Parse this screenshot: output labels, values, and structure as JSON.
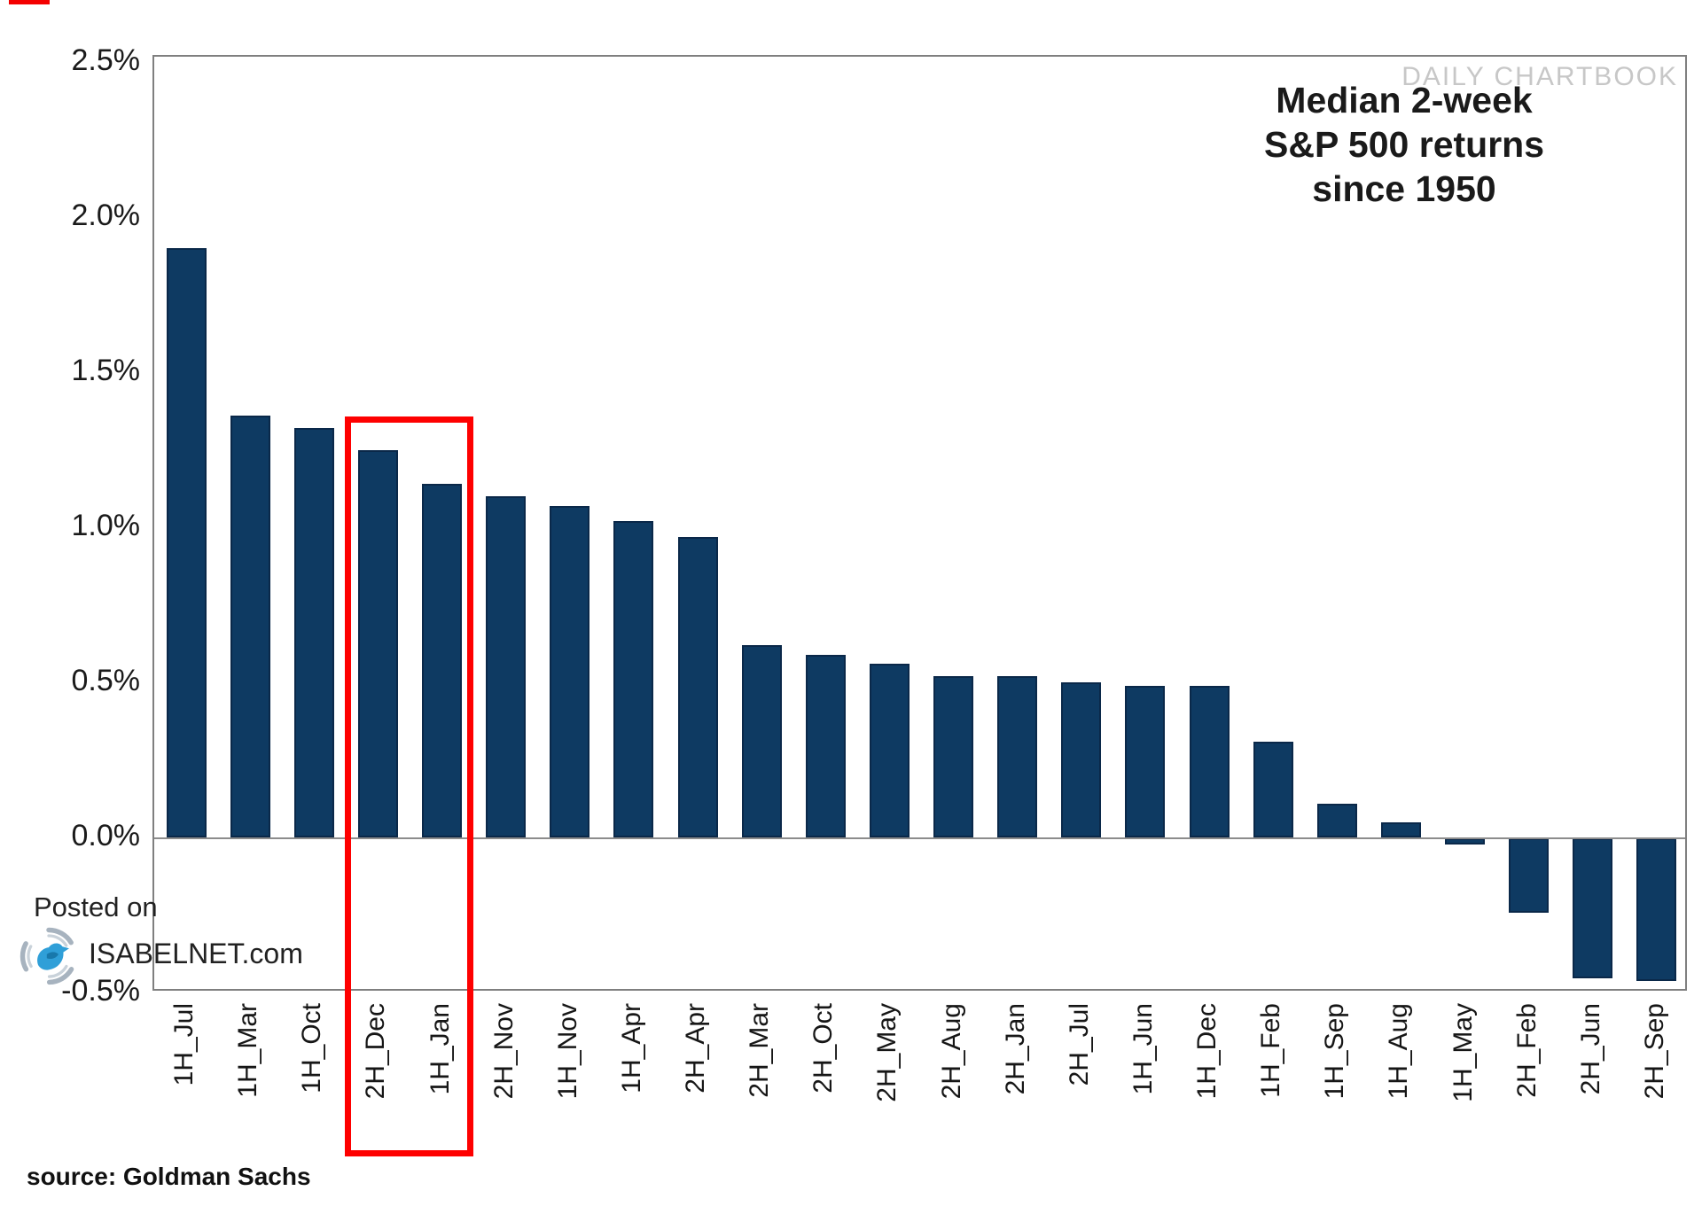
{
  "page": {
    "watermark": "DAILY CHARTBOOK",
    "posted_on": "Posted on",
    "posted_site": "ISABELNET.com",
    "source": "source: Goldman Sachs"
  },
  "chart_data": {
    "type": "bar",
    "title": "Median 2-week S&P 500 returns since 1950",
    "title_lines": [
      "Median 2-week",
      "S&P 500 returns",
      "since 1950"
    ],
    "categories": [
      "1H_Jul",
      "1H_Mar",
      "1H_Oct",
      "2H_Dec",
      "1H_Jan",
      "2H_Nov",
      "1H_Nov",
      "1H_Apr",
      "2H_Apr",
      "2H_Mar",
      "2H_Oct",
      "2H_May",
      "2H_Aug",
      "2H_Jan",
      "2H_Jul",
      "1H_Jun",
      "1H_Dec",
      "1H_Feb",
      "1H_Sep",
      "1H_Aug",
      "1H_May",
      "2H_Feb",
      "2H_Jun",
      "2H_Sep"
    ],
    "values": [
      1.9,
      1.36,
      1.32,
      1.25,
      1.14,
      1.1,
      1.07,
      1.02,
      0.97,
      0.62,
      0.59,
      0.56,
      0.52,
      0.52,
      0.5,
      0.49,
      0.49,
      0.31,
      0.11,
      0.05,
      -0.02,
      -0.24,
      -0.45,
      -0.46
    ],
    "unit": "%",
    "xlabel": "",
    "ylabel": "",
    "ytick_labels": [
      "2.5%",
      "2.0%",
      "1.5%",
      "1.0%",
      "0.5%",
      "0.0%",
      "-0.5%"
    ],
    "ytick_values": [
      2.5,
      2.0,
      1.5,
      1.0,
      0.5,
      0.0,
      -0.5
    ],
    "ylim": [
      -0.5,
      2.52
    ],
    "grid": false,
    "legend": null,
    "zero_line": true,
    "bar_color": "#0e3a62",
    "highlight": {
      "indices": [
        3,
        4
      ],
      "color": "#fe0000",
      "categories": [
        "2H_Dec",
        "1H_Jan"
      ]
    }
  }
}
